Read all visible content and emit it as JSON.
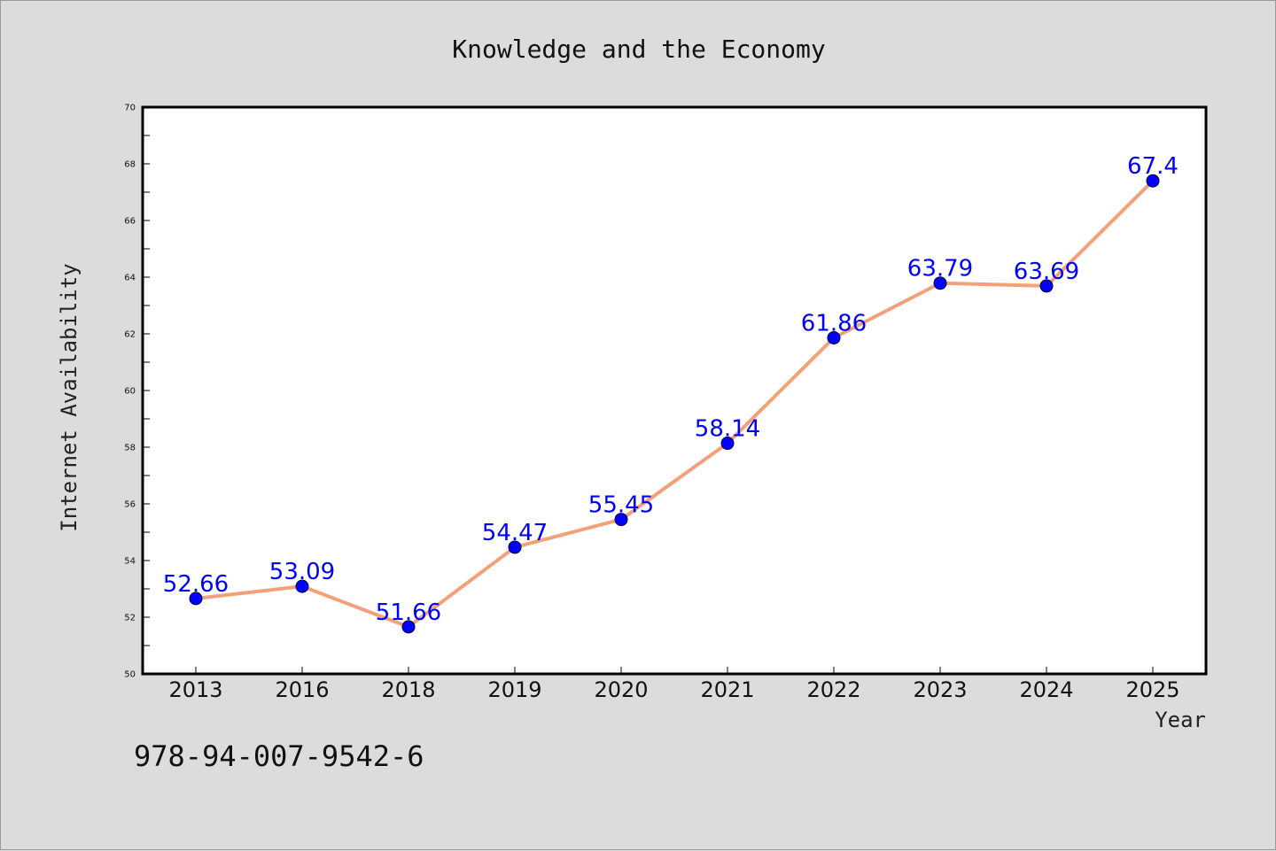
{
  "chart_data": {
    "type": "line",
    "title": "Knowledge and the Economy",
    "xlabel": "Year",
    "ylabel": "Internet Availability",
    "categories": [
      "2013",
      "2016",
      "2018",
      "2019",
      "2020",
      "2021",
      "2022",
      "2023",
      "2024",
      "2025"
    ],
    "series": [
      {
        "values": [
          52.66,
          53.09,
          51.66,
          54.47,
          55.45,
          58.14,
          61.86,
          63.79,
          63.69,
          67.4
        ],
        "labels": [
          "52.66",
          "53.09",
          "51.66",
          "54.47",
          "55.45",
          "58.14",
          "61.86",
          "63.79",
          "63.69",
          "67.4"
        ],
        "line_color": "#f4a07a",
        "marker_color": "#0000ff",
        "label_color": "#0000ff"
      }
    ],
    "ylim": [
      50,
      70
    ],
    "yticks": [
      "50",
      "52",
      "54",
      "56",
      "58",
      "60",
      "62",
      "64",
      "66",
      "68",
      "70"
    ],
    "grid": false,
    "legend": "none"
  },
  "footnote": "978-94-007-9542-6"
}
